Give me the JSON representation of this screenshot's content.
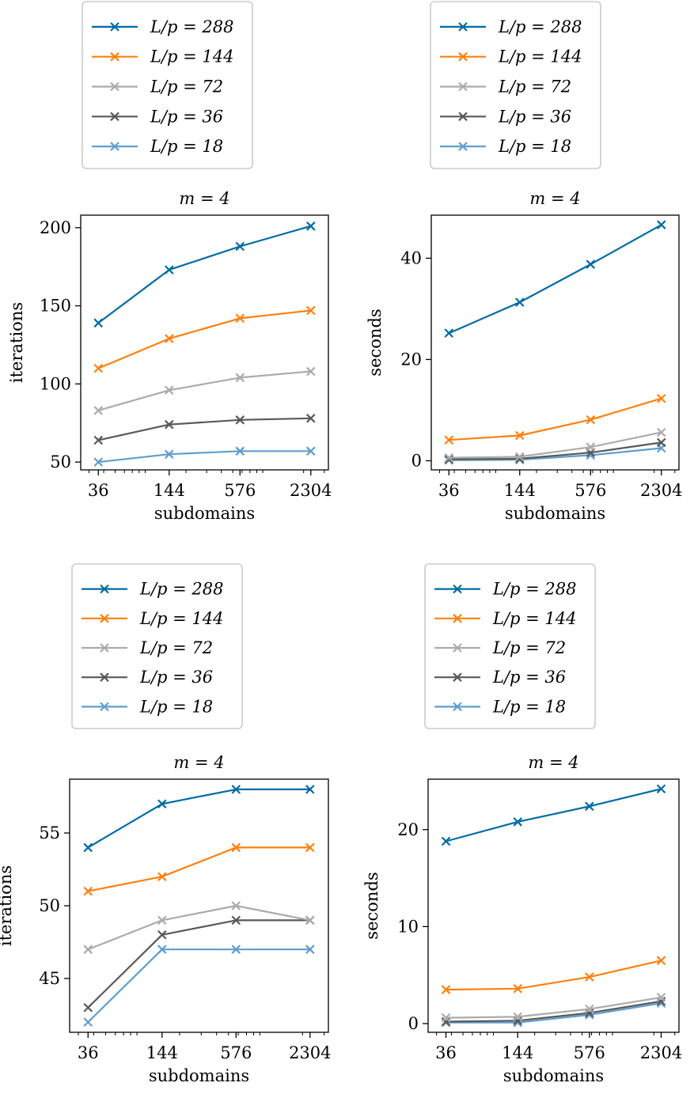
{
  "colors": {
    "L288": "#006ba4",
    "L144": "#ff800e",
    "L72": "#ababab",
    "L36": "#595959",
    "L18": "#5f9ed1"
  },
  "chart_data": [
    {
      "type": "line",
      "title": "m = 4",
      "xlabel": "subdomains",
      "ylabel": "iterations",
      "xscale": "log",
      "x": [
        36,
        144,
        576,
        2304
      ],
      "xticks": [
        "36",
        "144",
        "576",
        "2304"
      ],
      "yticks": [
        50,
        100,
        150,
        200
      ],
      "ylim": [
        45,
        208
      ],
      "legend": "above",
      "series": [
        {
          "name": "L/p = 288",
          "color": "L288",
          "values": [
            139,
            173,
            188,
            201
          ]
        },
        {
          "name": "L/p = 144",
          "color": "L144",
          "values": [
            110,
            129,
            142,
            147
          ]
        },
        {
          "name": "L/p = 72",
          "color": "L72",
          "values": [
            83,
            96,
            104,
            108
          ]
        },
        {
          "name": "L/p = 36",
          "color": "L36",
          "values": [
            64,
            74,
            77,
            78
          ]
        },
        {
          "name": "L/p = 18",
          "color": "L18",
          "values": [
            50,
            55,
            57,
            57
          ]
        }
      ]
    },
    {
      "type": "line",
      "title": "m = 4",
      "xlabel": "subdomains",
      "ylabel": "seconds",
      "xscale": "log",
      "x": [
        36,
        144,
        576,
        2304
      ],
      "xticks": [
        "36",
        "144",
        "576",
        "2304"
      ],
      "yticks": [
        0,
        20,
        40
      ],
      "ylim": [
        -1.8,
        48.5
      ],
      "legend": "above",
      "series": [
        {
          "name": "L/p = 288",
          "color": "L288",
          "values": [
            25.2,
            31.3,
            38.8,
            46.6
          ]
        },
        {
          "name": "L/p = 144",
          "color": "L144",
          "values": [
            4.1,
            5.0,
            8.1,
            12.3
          ]
        },
        {
          "name": "L/p = 72",
          "color": "L72",
          "values": [
            0.6,
            0.8,
            2.7,
            5.6
          ]
        },
        {
          "name": "L/p = 36",
          "color": "L36",
          "values": [
            0.3,
            0.4,
            1.6,
            3.6
          ]
        },
        {
          "name": "L/p = 18",
          "color": "L18",
          "values": [
            0.1,
            0.2,
            1.1,
            2.5
          ]
        }
      ]
    },
    {
      "type": "line",
      "title": "m = 4",
      "xlabel": "subdomains",
      "ylabel": "iterations",
      "xscale": "log",
      "x": [
        36,
        144,
        576,
        2304
      ],
      "xticks": [
        "36",
        "144",
        "576",
        "2304"
      ],
      "yticks": [
        45,
        50,
        55
      ],
      "ylim": [
        41.3,
        58.7
      ],
      "legend": "above",
      "series": [
        {
          "name": "L/p = 288",
          "color": "L288",
          "values": [
            54,
            57,
            58,
            58
          ]
        },
        {
          "name": "L/p = 144",
          "color": "L144",
          "values": [
            51,
            52,
            54,
            54
          ]
        },
        {
          "name": "L/p = 72",
          "color": "L72",
          "values": [
            47,
            49,
            50,
            49
          ]
        },
        {
          "name": "L/p = 36",
          "color": "L36",
          "values": [
            43,
            48,
            49,
            49
          ]
        },
        {
          "name": "L/p = 18",
          "color": "L18",
          "values": [
            42,
            47,
            47,
            47
          ]
        }
      ]
    },
    {
      "type": "line",
      "title": "m = 4",
      "xlabel": "subdomains",
      "ylabel": "seconds",
      "xscale": "log",
      "x": [
        36,
        144,
        576,
        2304
      ],
      "xticks": [
        "36",
        "144",
        "576",
        "2304"
      ],
      "yticks": [
        0,
        10,
        20
      ],
      "ylim": [
        -0.9,
        25.2
      ],
      "legend": "above",
      "series": [
        {
          "name": "L/p = 288",
          "color": "L288",
          "values": [
            18.8,
            20.8,
            22.4,
            24.2
          ]
        },
        {
          "name": "L/p = 144",
          "color": "L144",
          "values": [
            3.5,
            3.6,
            4.8,
            6.5
          ]
        },
        {
          "name": "L/p = 72",
          "color": "L72",
          "values": [
            0.6,
            0.7,
            1.5,
            2.7
          ]
        },
        {
          "name": "L/p = 36",
          "color": "L36",
          "values": [
            0.2,
            0.3,
            1.1,
            2.3
          ]
        },
        {
          "name": "L/p = 18",
          "color": "L18",
          "values": [
            0.1,
            0.1,
            0.9,
            2.1
          ]
        }
      ]
    }
  ]
}
